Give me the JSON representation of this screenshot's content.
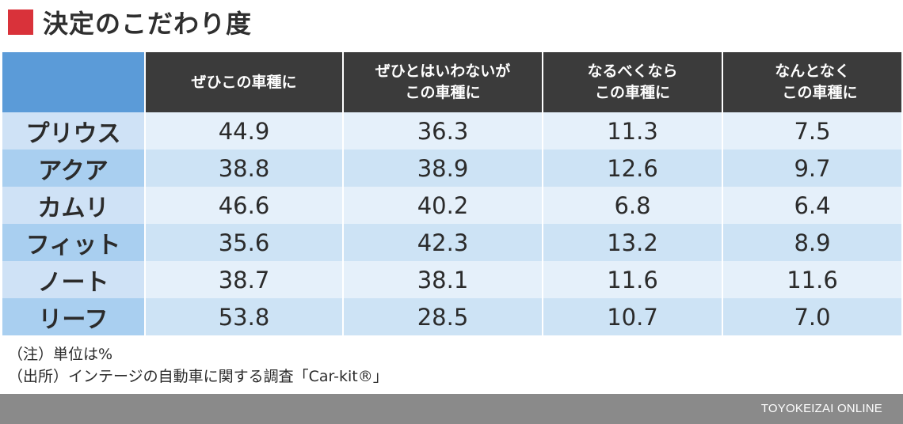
{
  "title": "決定のこだわり度",
  "colors": {
    "accent": "#d9323a",
    "header_bg": "#3b3b3b",
    "corner": "#5b9bd8",
    "footer": "#8a8a8a"
  },
  "chart_data": {
    "type": "table",
    "columns": [
      "ぜひこの車種に",
      "ぜひとはいわないが\nこの車種に",
      "なるべくなら\nこの車種に",
      "なんとなく\n　この車種に"
    ],
    "rows": [
      {
        "label": "プリウス",
        "values": [
          "44.9",
          "36.3",
          "11.3",
          "7.5"
        ]
      },
      {
        "label": "アクア",
        "values": [
          "38.8",
          "38.9",
          "12.6",
          "9.7"
        ]
      },
      {
        "label": "カムリ",
        "values": [
          "46.6",
          "40.2",
          "6.8",
          "6.4"
        ]
      },
      {
        "label": "フィット",
        "values": [
          "35.6",
          "42.3",
          "13.2",
          "8.9"
        ]
      },
      {
        "label": "ノート",
        "values": [
          "38.7",
          "38.1",
          "11.6",
          "11.6"
        ]
      },
      {
        "label": "リーフ",
        "values": [
          "53.8",
          "28.5",
          "10.7",
          "7.0"
        ]
      }
    ]
  },
  "notes": [
    "（注）単位は%",
    "（出所）インテージの自動車に関する調査「Car-kit®」"
  ],
  "footer": {
    "brand": "TOYOKEIZAI ONLINE"
  }
}
